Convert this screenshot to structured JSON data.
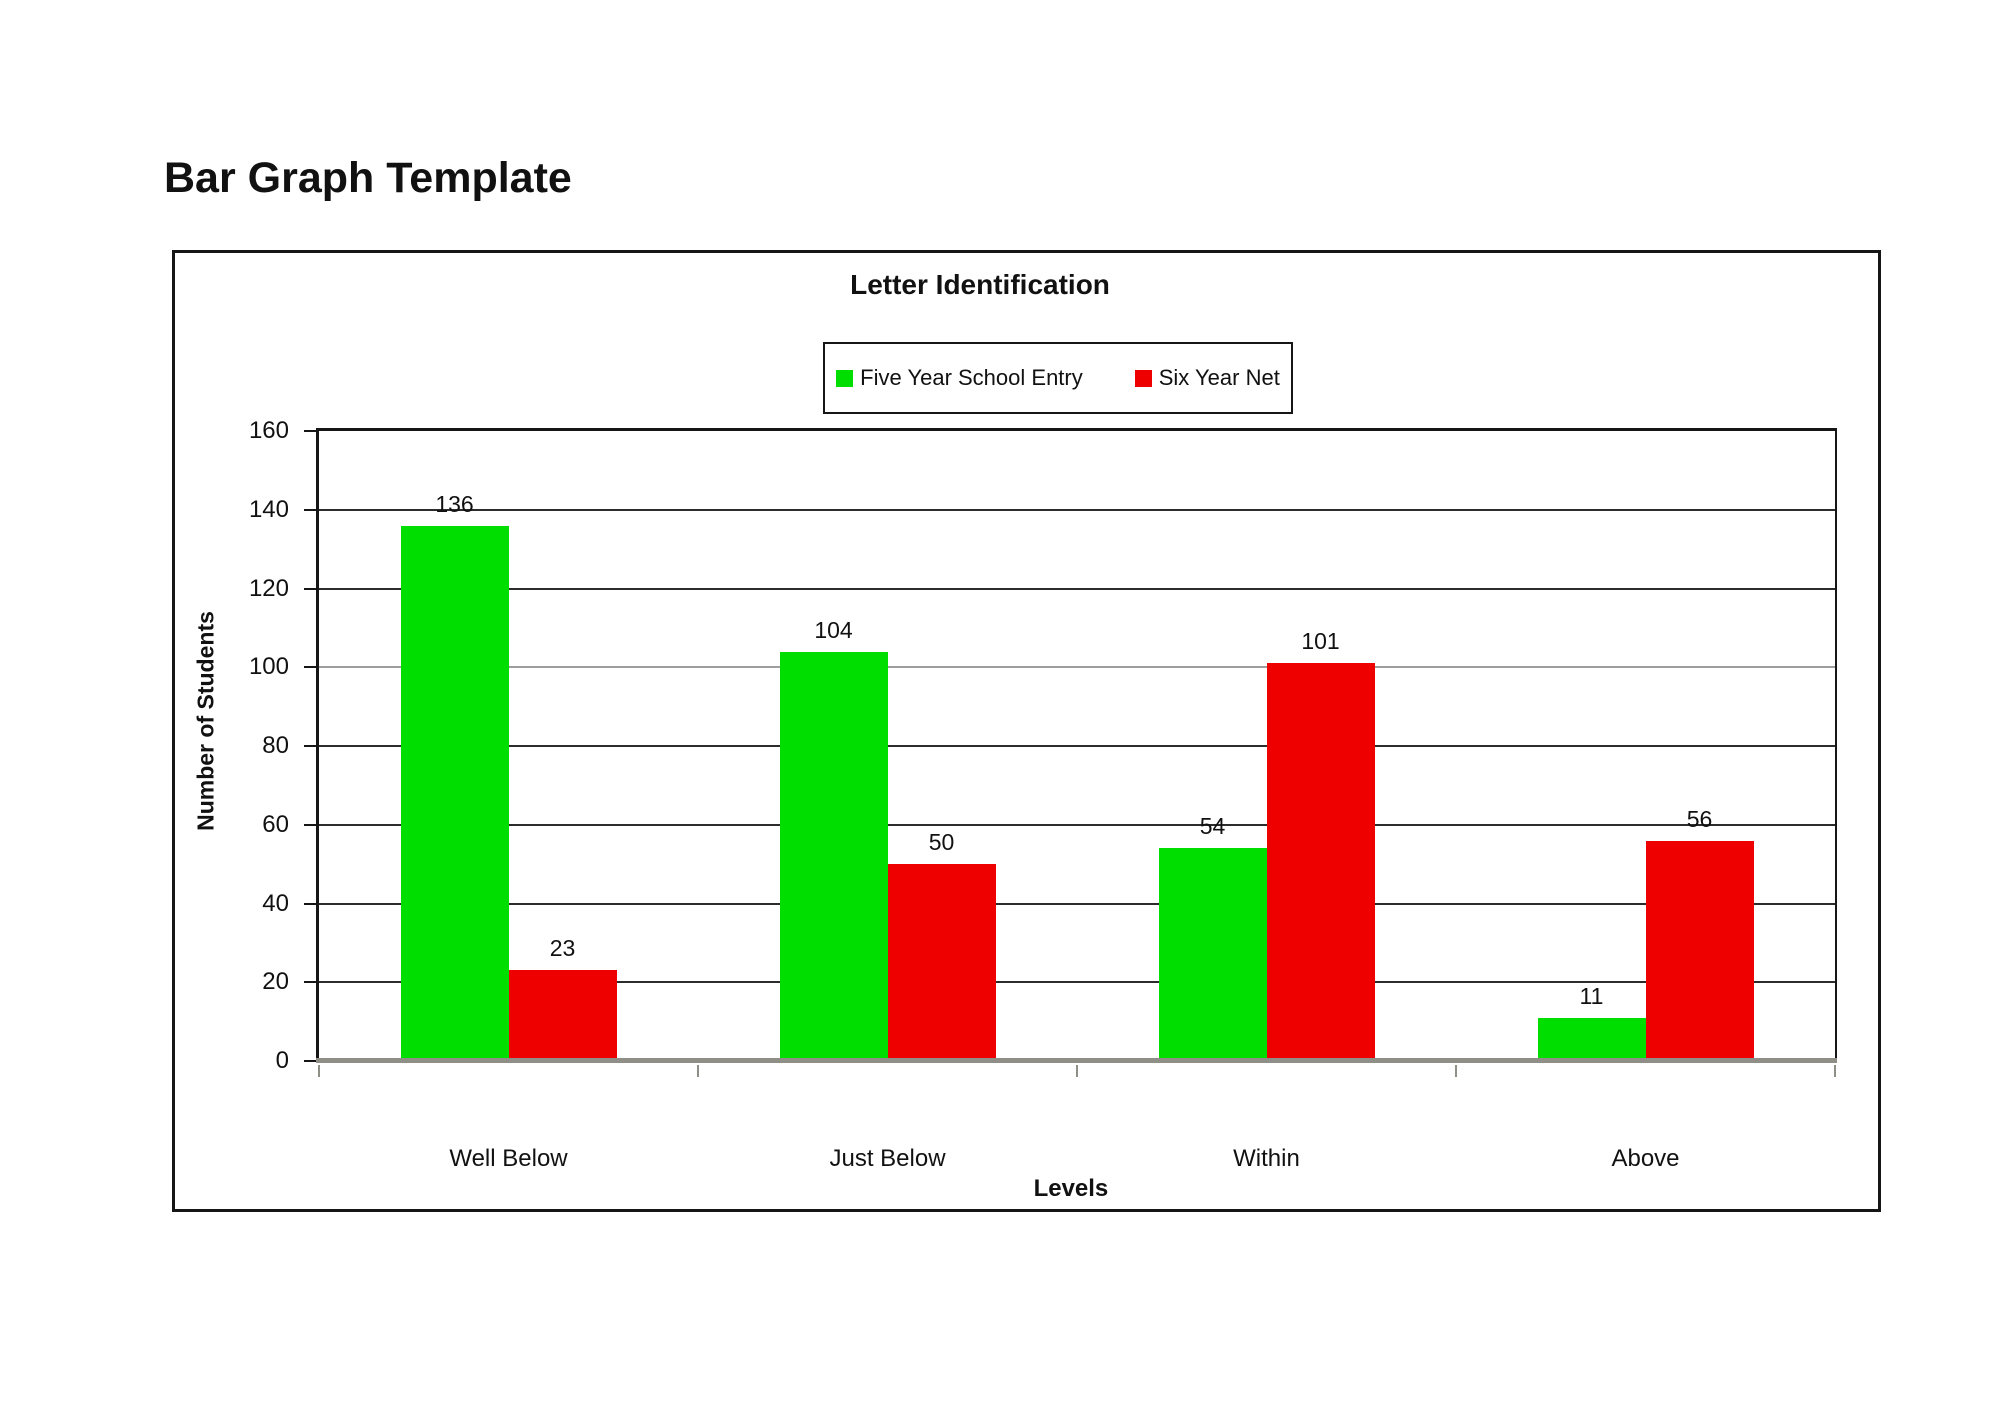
{
  "page": {
    "title": "Bar Graph Template"
  },
  "chart_data": {
    "type": "bar",
    "title": "Letter Identification",
    "categories": [
      "Well Below",
      "Just Below",
      "Within",
      "Above"
    ],
    "series": [
      {
        "name": "Five Year School Entry",
        "color": "#00DE00",
        "values": [
          136,
          104,
          54,
          11
        ]
      },
      {
        "name": "Six Year Net",
        "color": "#EE0000",
        "values": [
          23,
          50,
          101,
          56
        ]
      }
    ],
    "xlabel": "Levels",
    "ylabel": "Number of Students",
    "ylim": [
      0,
      160
    ],
    "ytick_step": 20,
    "grid": true,
    "legend_position": "top-center",
    "bar_value_labels": true
  }
}
